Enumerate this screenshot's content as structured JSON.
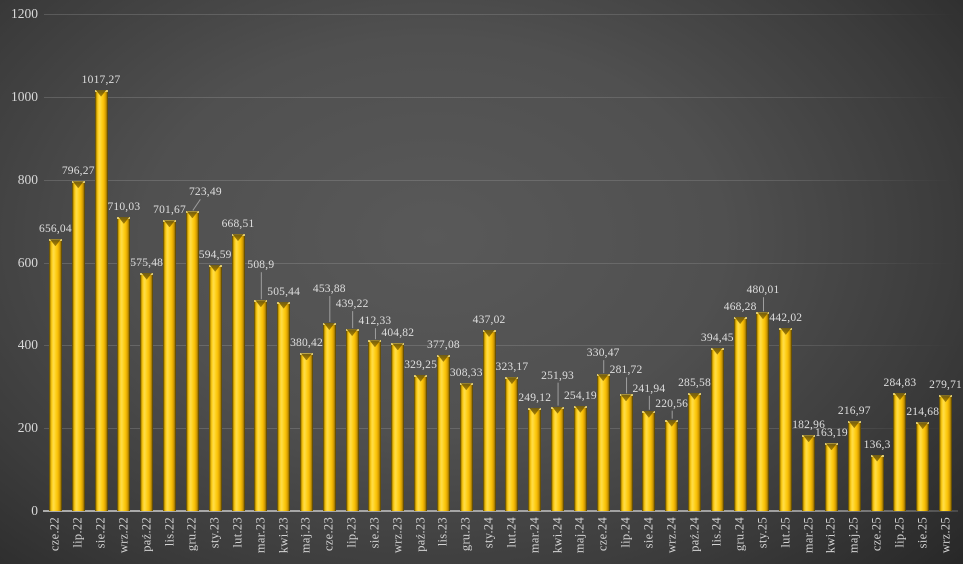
{
  "chart_data": {
    "type": "bar",
    "title": "",
    "xlabel": "",
    "ylabel": "",
    "ylim": [
      0,
      1200
    ],
    "yticks": [
      0,
      200,
      400,
      600,
      800,
      1000,
      1200
    ],
    "grid": true,
    "legend": false,
    "categories": [
      "cze.22",
      "lip.22",
      "sie.22",
      "wrz.22",
      "paź.22",
      "lis.22",
      "gru.22",
      "sty.23",
      "lut.23",
      "mar.23",
      "kwi.23",
      "maj.23",
      "cze.23",
      "lip.23",
      "sie.23",
      "wrz.23",
      "paź.23",
      "lis.23",
      "gru.23",
      "sty.24",
      "lut.24",
      "mar.24",
      "kwi.24",
      "maj.24",
      "cze.24",
      "lip.24",
      "sie.24",
      "wrz.24",
      "paź.24",
      "lis.24",
      "gru.24",
      "sty.25",
      "lut.25",
      "mar.25",
      "kwi.25",
      "maj.25",
      "cze.25",
      "lip.25",
      "sie.25",
      "wrz.25"
    ],
    "values": [
      656.04,
      796.27,
      1017.27,
      710.03,
      575.48,
      701.67,
      723.49,
      594.59,
      668.51,
      508.9,
      505.44,
      380.42,
      453.88,
      439.22,
      412.33,
      404.82,
      329.25,
      377.08,
      308.33,
      437.02,
      323.17,
      249.12,
      251.93,
      254.19,
      330.47,
      281.72,
      241.94,
      220.56,
      285.58,
      394.45,
      468.28,
      480.01,
      442.02,
      182.96,
      163.19,
      216.97,
      136.3,
      284.83,
      214.68,
      279.71
    ],
    "value_labels": [
      "656,04",
      "796,27",
      "1017,27",
      "710,03",
      "575,48",
      "701,67",
      "723,49",
      "594,59",
      "668,51",
      "508,9",
      "505,44",
      "380,42",
      "453,88",
      "439,22",
      "412,33",
      "404,82",
      "329,25",
      "377,08",
      "308,33",
      "437,02",
      "323,17",
      "249,12",
      "251,93",
      "254,19",
      "330,47",
      "281,72",
      "241,94",
      "220,56",
      "285,58",
      "394,45",
      "468,28",
      "480,01",
      "442,02",
      "182,96",
      "163,19",
      "216,97",
      "136,3",
      "284,83",
      "214,68",
      "279,71"
    ],
    "label_layout": {
      "6": {
        "dx": 13,
        "raise": 9,
        "leader": true
      },
      "9": {
        "dx": 0,
        "raise": 25,
        "leader": true
      },
      "12": {
        "dx": 0,
        "raise": 24,
        "leader": true
      },
      "13": {
        "dx": 0,
        "raise": 15,
        "leader": true
      },
      "14": {
        "dx": 0,
        "raise": 9,
        "leader": true
      },
      "22": {
        "dx": 0,
        "raise": 21,
        "leader": true
      },
      "24": {
        "dx": 0,
        "raise": 11,
        "leader": true
      },
      "25": {
        "dx": 0,
        "raise": 14,
        "leader": true
      },
      "26": {
        "dx": 0,
        "raise": 12,
        "leader": true
      },
      "27": {
        "dx": 0,
        "raise": 6,
        "leader": true
      },
      "31": {
        "dx": 0,
        "raise": 12,
        "leader": true
      }
    },
    "colors": {
      "bar_main": "#FFD11C",
      "bar_highlight": "#FFDC49",
      "bar_edge": "#453501",
      "background_center": "#595959",
      "background_edge": "#232323",
      "gridline": "rgba(255,255,255,0.13)",
      "axis_line": "#A8A8A8",
      "text": "#D8D8D8",
      "leader_line": "#9F9F9F"
    }
  }
}
